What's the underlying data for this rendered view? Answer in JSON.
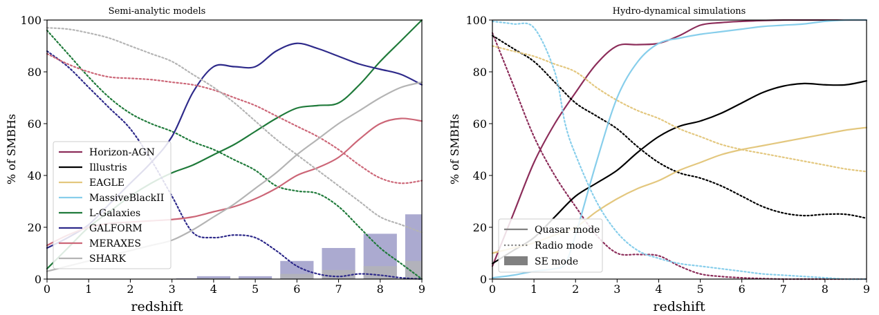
{
  "chart_data": [
    {
      "type": "line",
      "title": "Semi-analytic models",
      "xlabel": "redshift",
      "ylabel": "% of SMBHs",
      "xlim": [
        0,
        9
      ],
      "ylim": [
        0,
        100
      ],
      "xticks": [
        0,
        1,
        2,
        3,
        4,
        5,
        6,
        7,
        8,
        9
      ],
      "yticks": [
        0,
        20,
        40,
        60,
        80,
        100
      ],
      "grid": false,
      "legend_position": "lower-left",
      "legend": [
        {
          "name": "Horizon-AGN",
          "color": "#8c2d5a"
        },
        {
          "name": "Illustris",
          "color": "#000000"
        },
        {
          "name": "EAGLE",
          "color": "#e3c77e"
        },
        {
          "name": "MassiveBlackII",
          "color": "#87ceeb"
        },
        {
          "name": "L-Galaxies",
          "color": "#1f7a3a"
        },
        {
          "name": "GALFORM",
          "color": "#2e2a8a"
        },
        {
          "name": "MERAXES",
          "color": "#cc6677"
        },
        {
          "name": "SHARK",
          "color": "#b4b4b4"
        }
      ],
      "series": [
        {
          "name": "L-Galaxies",
          "mode": "quasar",
          "color": "#1f7a3a",
          "x": [
            0,
            0.5,
            1,
            1.5,
            2,
            2.5,
            3,
            3.5,
            4,
            4.5,
            5,
            5.5,
            6,
            6.5,
            7,
            7.5,
            8,
            8.5,
            9
          ],
          "y": [
            4,
            12,
            20,
            26,
            32,
            37,
            41,
            44,
            48,
            52,
            57,
            62,
            66,
            67,
            68,
            75,
            84,
            92,
            100
          ]
        },
        {
          "name": "L-Galaxies",
          "mode": "radio",
          "color": "#1f7a3a",
          "x": [
            0,
            0.5,
            1,
            1.5,
            2,
            2.5,
            3,
            3.5,
            4,
            4.5,
            5,
            5.5,
            6,
            6.5,
            7,
            7.5,
            8,
            8.5,
            9
          ],
          "y": [
            96,
            87,
            78,
            70,
            64,
            60,
            57,
            53,
            50,
            46,
            42,
            36,
            34,
            33,
            28,
            20,
            12,
            6,
            0
          ]
        },
        {
          "name": "GALFORM",
          "mode": "quasar",
          "color": "#2e2a8a",
          "x": [
            0,
            0.5,
            1,
            1.5,
            2,
            2.5,
            3,
            3.5,
            4,
            4.5,
            5,
            5.5,
            6,
            6.5,
            7,
            7.5,
            8,
            8.5,
            9
          ],
          "y": [
            12,
            16,
            21,
            29,
            37,
            45,
            55,
            72,
            82,
            82,
            82,
            88,
            91,
            89,
            86,
            83,
            81,
            79,
            75
          ]
        },
        {
          "name": "GALFORM",
          "mode": "radio",
          "color": "#2e2a8a",
          "x": [
            0,
            0.5,
            1,
            1.5,
            2,
            2.5,
            3,
            3.5,
            4,
            4.5,
            5,
            5.5,
            6,
            6.5,
            7,
            7.5,
            8,
            8.5,
            9
          ],
          "y": [
            88,
            82,
            74,
            66,
            58,
            46,
            32,
            18,
            16,
            17,
            16,
            11,
            5,
            2,
            1,
            2,
            1.5,
            0.5,
            0
          ]
        },
        {
          "name": "MERAXES",
          "mode": "quasar",
          "color": "#cc6677",
          "x": [
            0,
            0.5,
            1,
            1.5,
            2,
            2.5,
            3,
            3.5,
            4,
            4.5,
            5,
            5.5,
            6,
            6.5,
            7,
            7.5,
            8,
            8.5,
            9
          ],
          "y": [
            13,
            17,
            20,
            21.5,
            22,
            22.5,
            23,
            24,
            26,
            28,
            31,
            35,
            40,
            43,
            47,
            54,
            60,
            62,
            61
          ]
        },
        {
          "name": "MERAXES",
          "mode": "radio",
          "color": "#cc6677",
          "x": [
            0,
            0.5,
            1,
            1.5,
            2,
            2.5,
            3,
            3.5,
            4,
            4.5,
            5,
            5.5,
            6,
            6.5,
            7,
            7.5,
            8,
            8.5,
            9
          ],
          "y": [
            87,
            83,
            80,
            78,
            77.5,
            77,
            76,
            75,
            73,
            70,
            67,
            63,
            59,
            55,
            50,
            44,
            39,
            37,
            38
          ]
        },
        {
          "name": "SHARK",
          "mode": "quasar",
          "color": "#b4b4b4",
          "x": [
            0,
            0.5,
            1,
            1.5,
            2,
            2.5,
            3,
            3.5,
            4,
            4.5,
            5,
            5.5,
            6,
            6.5,
            7,
            7.5,
            8,
            8.5,
            9
          ],
          "y": [
            3,
            5,
            7,
            9,
            11,
            13,
            15,
            19,
            24,
            29,
            35,
            41,
            48,
            54,
            60,
            65,
            70,
            74,
            76
          ]
        },
        {
          "name": "SHARK",
          "mode": "radio",
          "color": "#b4b4b4",
          "x": [
            0,
            0.5,
            1,
            1.5,
            2,
            2.5,
            3,
            3.5,
            4,
            4.5,
            5,
            5.5,
            6,
            6.5,
            7,
            7.5,
            8,
            8.5,
            9
          ],
          "y": [
            97,
            96.5,
            95,
            93,
            90,
            87,
            84,
            79,
            74,
            68,
            61,
            54,
            48,
            42,
            36,
            30,
            24,
            21,
            18
          ]
        }
      ],
      "bars": [
        {
          "x": 3.5,
          "galform": 0.3,
          "shark": 0.2
        },
        {
          "x": 4,
          "galform": 1.1,
          "shark": 0.3
        },
        {
          "x": 5,
          "galform": 1.1,
          "shark": 0.3
        },
        {
          "x": 6,
          "galform": 7,
          "shark": 2
        },
        {
          "x": 7,
          "galform": 12,
          "shark": 3.5
        },
        {
          "x": 8,
          "galform": 17.5,
          "shark": 5
        },
        {
          "x": 9,
          "galform": 25,
          "shark": 7
        }
      ]
    },
    {
      "type": "line",
      "title": "Hydro-dynamical simulations",
      "xlabel": "redshift",
      "ylabel": "% of SMBHs",
      "xlim": [
        0,
        9
      ],
      "ylim": [
        0,
        100
      ],
      "xticks": [
        0,
        1,
        2,
        3,
        4,
        5,
        6,
        7,
        8,
        9
      ],
      "yticks": [
        0,
        20,
        40,
        60,
        80,
        100
      ],
      "grid": false,
      "legend_position": "lower-left",
      "legend": [
        {
          "name": "Quasar mode",
          "style": "solid"
        },
        {
          "name": "Radio mode",
          "style": "dotted"
        },
        {
          "name": "SE mode",
          "style": "patch"
        }
      ],
      "series": [
        {
          "name": "Horizon-AGN",
          "mode": "quasar",
          "color": "#8c2d5a",
          "x": [
            0,
            0.5,
            1,
            1.5,
            2,
            2.5,
            3,
            3.5,
            4,
            4.5,
            5,
            5.5,
            6,
            6.5,
            7,
            7.5,
            8,
            8.5,
            9
          ],
          "y": [
            5,
            25,
            45,
            60,
            72,
            83,
            90,
            90.5,
            91,
            94,
            98,
            99,
            99.5,
            99.8,
            100,
            100,
            100,
            100,
            100
          ]
        },
        {
          "name": "Horizon-AGN",
          "mode": "radio",
          "color": "#8c2d5a",
          "x": [
            0,
            0.5,
            1,
            1.5,
            2,
            2.5,
            3,
            3.5,
            4,
            4.5,
            5,
            5.5,
            6,
            6.5,
            7,
            7.5,
            8,
            8.5,
            9
          ],
          "y": [
            95,
            75,
            55,
            40,
            28,
            17,
            10,
            9.5,
            9,
            5,
            2,
            1,
            0.5,
            0.2,
            0,
            0,
            0,
            0,
            0
          ]
        },
        {
          "name": "Illustris",
          "mode": "quasar",
          "color": "#000000",
          "x": [
            0,
            0.5,
            1,
            1.5,
            2,
            2.5,
            3,
            3.5,
            4,
            4.5,
            5,
            5.5,
            6,
            6.5,
            7,
            7.5,
            8,
            8.5,
            9
          ],
          "y": [
            6,
            11,
            16,
            24,
            32,
            37,
            42,
            49,
            55,
            59,
            61,
            64,
            68,
            72,
            74.5,
            75.5,
            75,
            75,
            76.5
          ]
        },
        {
          "name": "Illustris",
          "mode": "radio",
          "color": "#000000",
          "x": [
            0,
            0.5,
            1,
            1.5,
            2,
            2.5,
            3,
            3.5,
            4,
            4.5,
            5,
            5.5,
            6,
            6.5,
            7,
            7.5,
            8,
            8.5,
            9
          ],
          "y": [
            94,
            89,
            84,
            76,
            68,
            63,
            58,
            51,
            45,
            41,
            39,
            36,
            32,
            28,
            25.5,
            24.5,
            25,
            25,
            23.5
          ]
        },
        {
          "name": "EAGLE",
          "mode": "quasar",
          "color": "#e3c77e",
          "x": [
            0,
            0.5,
            1,
            1.5,
            2,
            2.5,
            3,
            3.5,
            4,
            4.5,
            5,
            5.5,
            6,
            6.5,
            7,
            7.5,
            8,
            8.5,
            9
          ],
          "y": [
            10,
            12,
            14,
            17,
            20,
            26,
            31,
            35,
            38,
            42,
            45,
            48,
            50,
            51.5,
            53,
            54.5,
            56,
            57.5,
            58.5
          ]
        },
        {
          "name": "EAGLE",
          "mode": "radio",
          "color": "#e3c77e",
          "x": [
            0,
            0.5,
            1,
            1.5,
            2,
            2.5,
            3,
            3.5,
            4,
            4.5,
            5,
            5.5,
            6,
            6.5,
            7,
            7.5,
            8,
            8.5,
            9
          ],
          "y": [
            90,
            88,
            86,
            83,
            80,
            74,
            69,
            65,
            62,
            58,
            55,
            52,
            50,
            48.5,
            47,
            45.5,
            44,
            42.5,
            41.5
          ]
        },
        {
          "name": "MassiveBlackII",
          "mode": "quasar",
          "color": "#87ceeb",
          "x": [
            0,
            0.5,
            1,
            1.5,
            1.75,
            2,
            2.5,
            3,
            3.5,
            4,
            4.5,
            5,
            5.5,
            6,
            6.5,
            7,
            7.5,
            8,
            8.5,
            9
          ],
          "y": [
            0.5,
            1.5,
            3,
            4,
            6,
            17,
            45,
            70,
            84,
            91,
            93,
            94.5,
            95.5,
            96.5,
            97.5,
            98,
            98.5,
            99.5,
            100,
            100
          ]
        },
        {
          "name": "MassiveBlackII",
          "mode": "radio",
          "color": "#87ceeb",
          "x": [
            0,
            0.5,
            1,
            1.5,
            1.75,
            2,
            2.5,
            3,
            3.5,
            4,
            4.5,
            5,
            5.5,
            6,
            6.5,
            7,
            7.5,
            8,
            8.5,
            9
          ],
          "y": [
            99.5,
            98.5,
            97,
            80,
            60,
            48,
            30,
            18,
            11,
            8,
            6,
            5,
            4,
            3,
            2,
            1.5,
            1,
            0.5,
            0,
            0
          ]
        }
      ]
    }
  ]
}
